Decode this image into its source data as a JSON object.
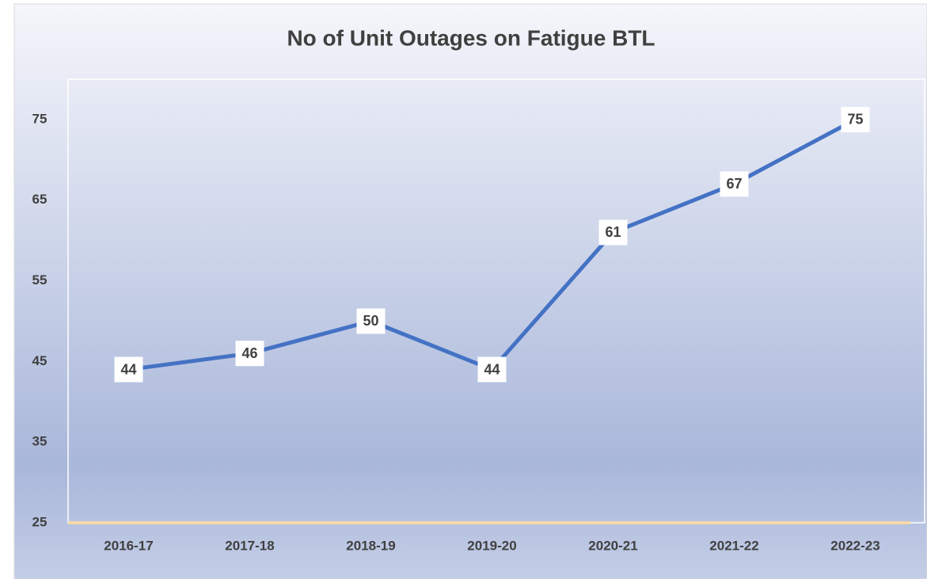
{
  "chart_data": {
    "type": "line",
    "title": "No of Unit Outages on Fatigue BTL",
    "categories": [
      "2016-17",
      "2017-18",
      "2018-19",
      "2019-20",
      "2020-21",
      "2021-22",
      "2022-23"
    ],
    "values": [
      44,
      46,
      50,
      44,
      61,
      67,
      75
    ],
    "color": "#4472c4",
    "ylim": [
      25,
      80
    ],
    "yticks": [
      25,
      35,
      45,
      55,
      65,
      75
    ],
    "grid": false
  }
}
